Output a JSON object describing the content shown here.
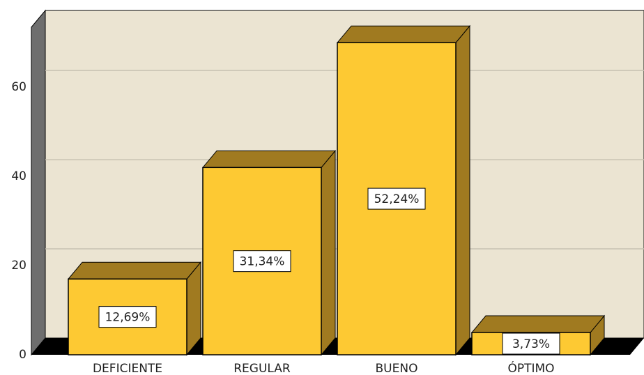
{
  "chart_data": {
    "type": "bar3d",
    "categories": [
      "DEFICIENTE",
      "REGULAR",
      "BUENO",
      "ÓPTIMO"
    ],
    "values": [
      17,
      42,
      70,
      5
    ],
    "value_labels": [
      "12,69%",
      "31,34%",
      "52,24%",
      "3,73%"
    ],
    "color": "#fdc933",
    "ylim": [
      0,
      73
    ],
    "yticks": [
      0,
      20,
      40,
      60
    ],
    "grid": true
  }
}
